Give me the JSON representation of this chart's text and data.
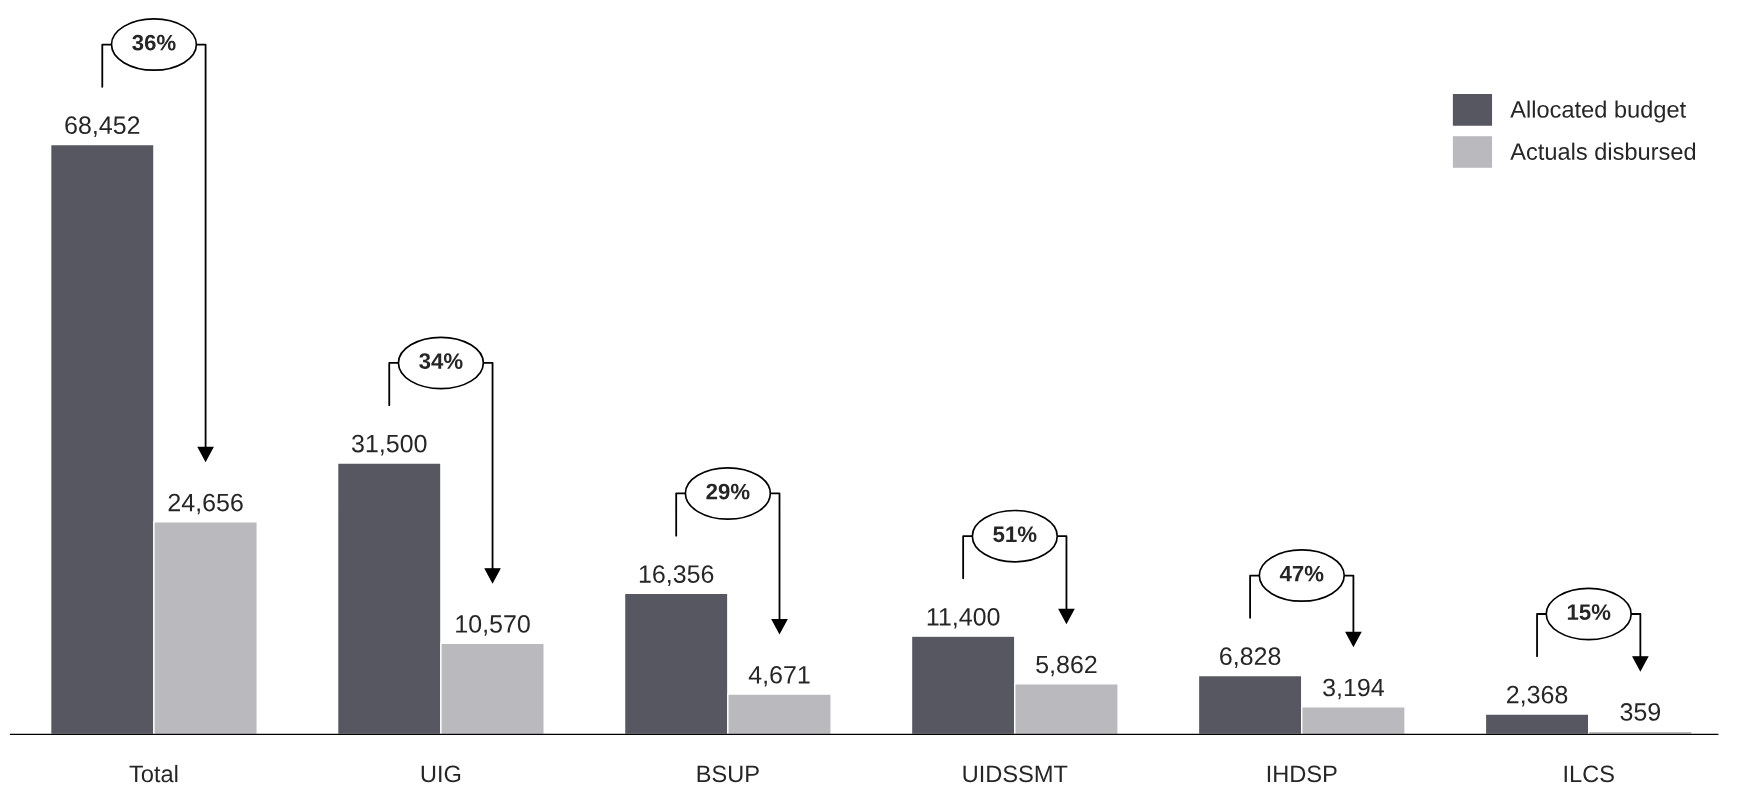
{
  "chart_data": {
    "type": "bar",
    "categories": [
      "Total",
      "UIG",
      "BSUP",
      "UIDSSMT",
      "IHDSP",
      "ILCS"
    ],
    "series": [
      {
        "name": "Allocated budget",
        "color": "#575761",
        "values": [
          68452,
          31500,
          16356,
          11400,
          6828,
          2368
        ],
        "value_labels": [
          "68,452",
          "31,500",
          "16,356",
          "11,400",
          "6,828",
          "2,368"
        ]
      },
      {
        "name": "Actuals disbursed",
        "color": "#b9b9be",
        "values": [
          24656,
          10570,
          4671,
          5862,
          3194,
          359
        ],
        "value_labels": [
          "24,656",
          "10,570",
          "4,671",
          "5,862",
          "3,194",
          "359"
        ]
      }
    ],
    "legend": "top right",
    "grid": false,
    "annotations": [
      "36%",
      "34%",
      "29%",
      "51%",
      "47%",
      "15%"
    ]
  }
}
